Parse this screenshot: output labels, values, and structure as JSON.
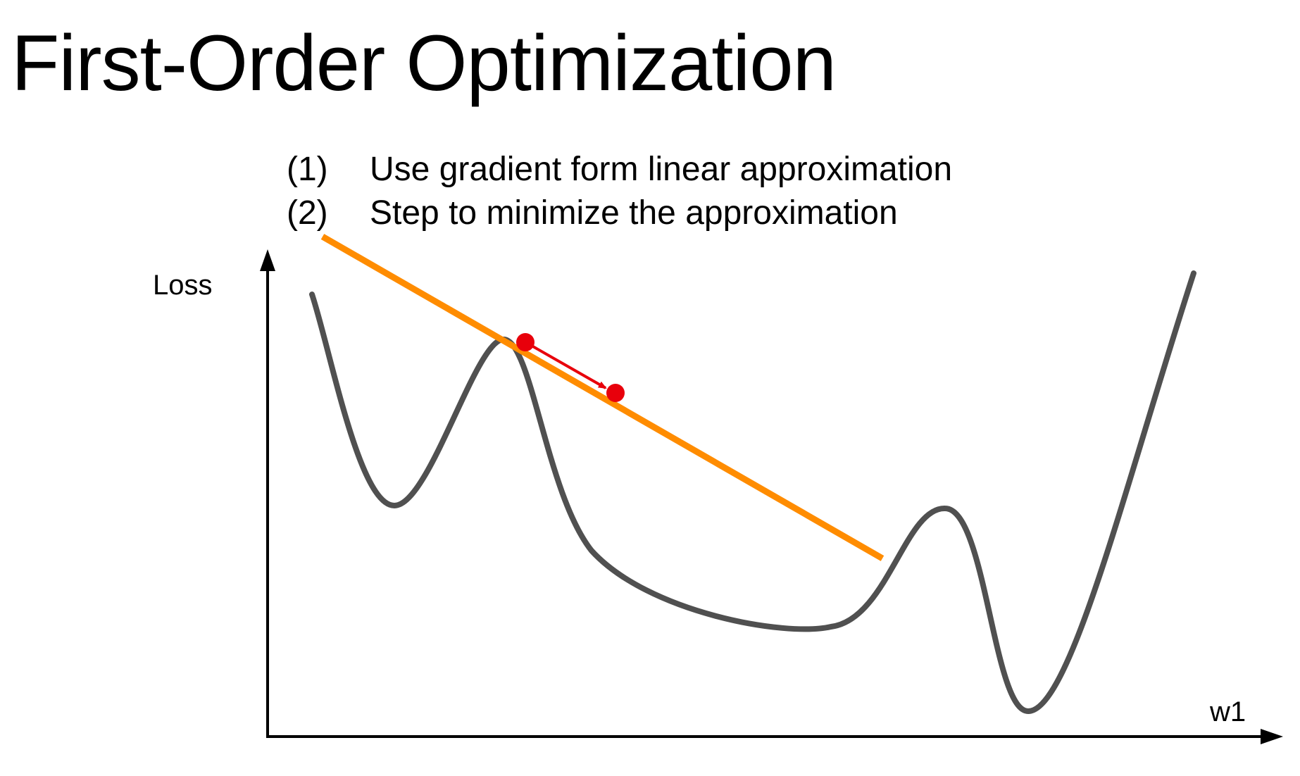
{
  "title": "First-Order Optimization",
  "steps": [
    {
      "number": "(1)",
      "text": "Use gradient form linear approximation"
    },
    {
      "number": "(2)",
      "text": "Step to minimize the approximation"
    }
  ],
  "axes": {
    "y_label": "Loss",
    "x_label": "w1"
  },
  "colors": {
    "loss_curve": "#505050",
    "tangent_line": "#ff8c00",
    "step_points": "#e8000b",
    "axes": "#000000"
  }
}
